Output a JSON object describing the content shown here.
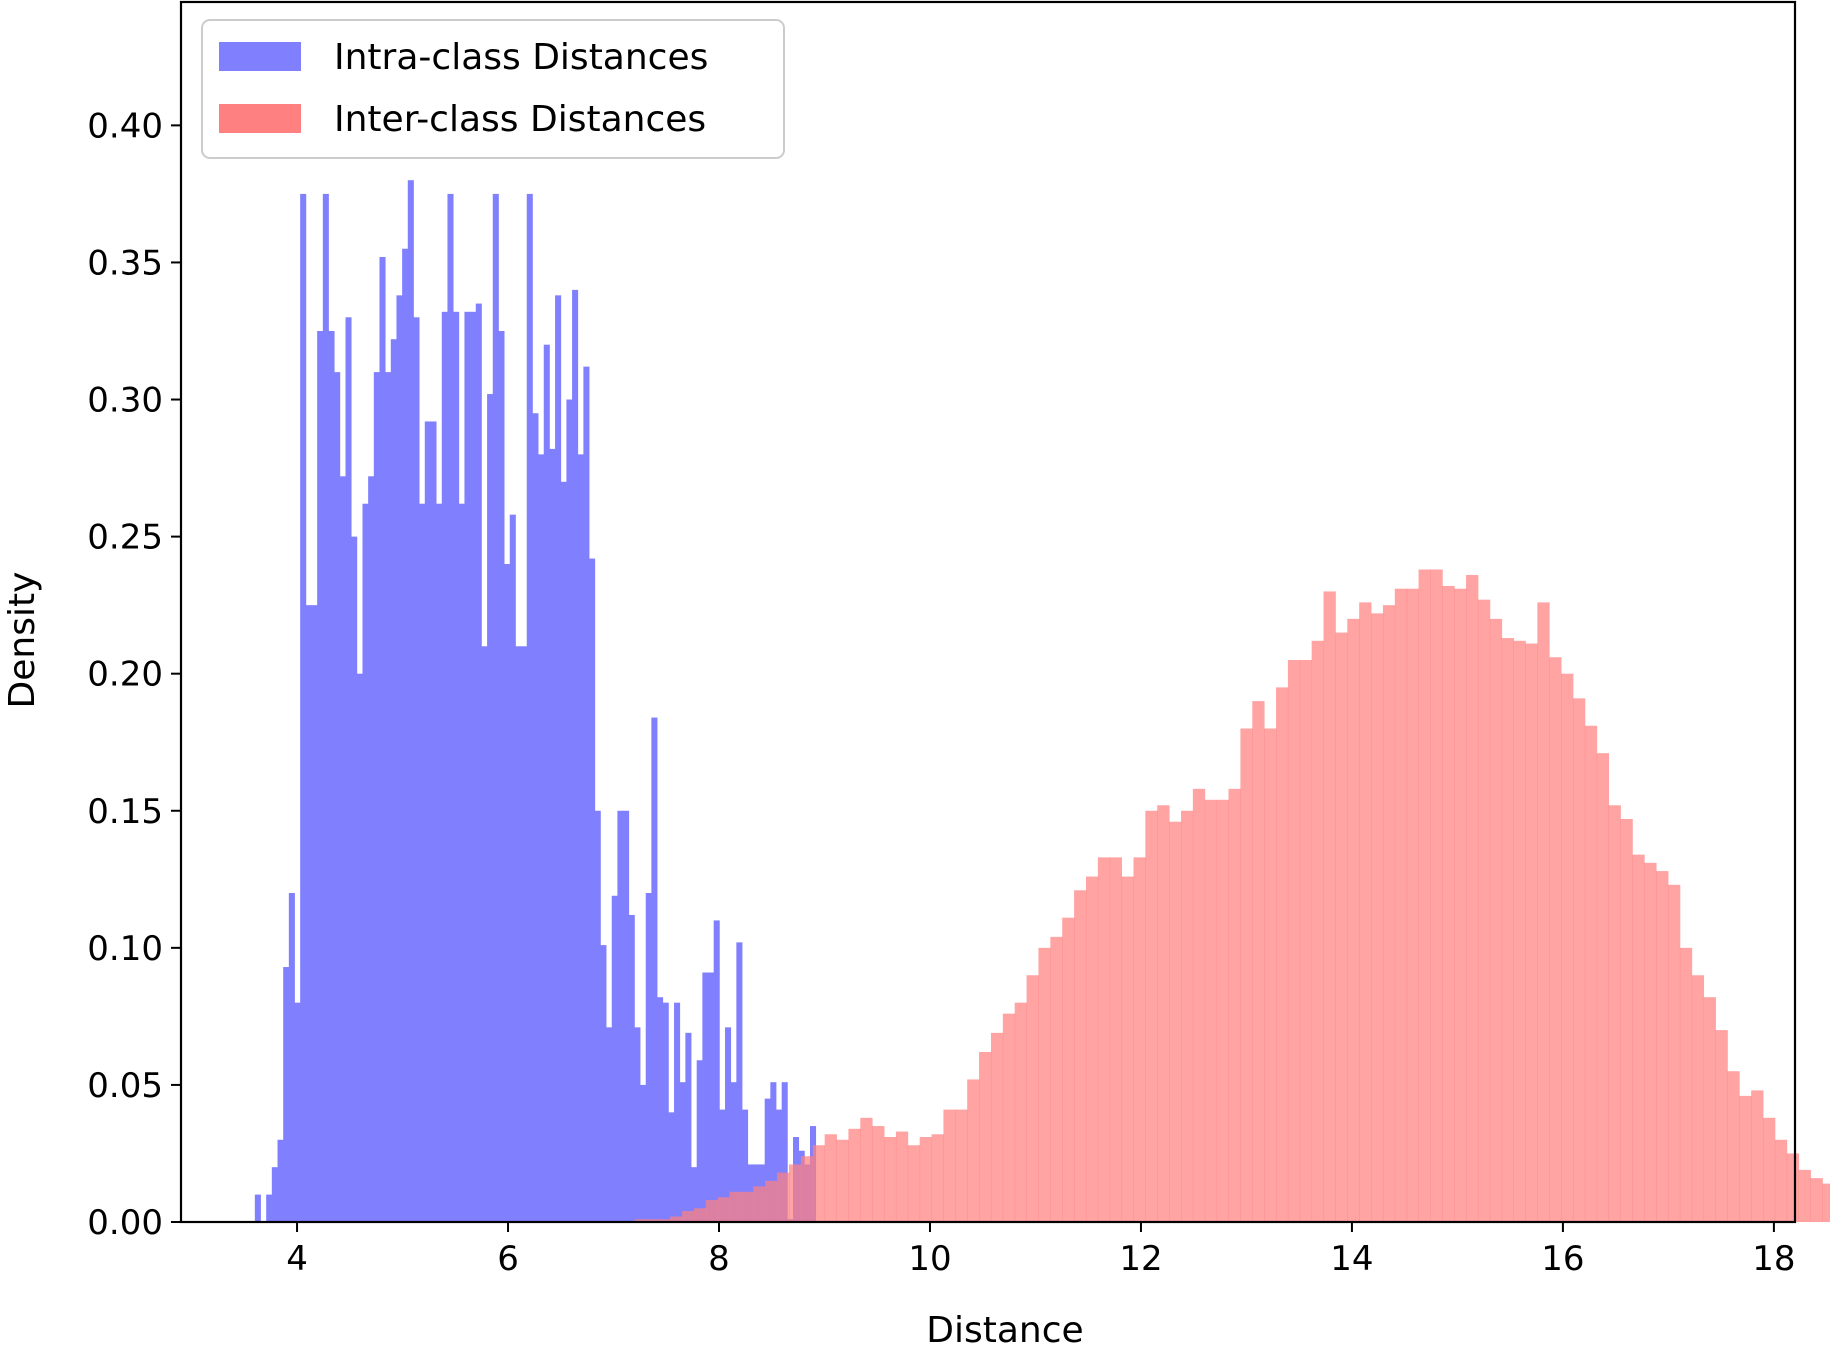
{
  "chart_data": {
    "type": "bar",
    "xlabel": "Distance",
    "ylabel": "Density",
    "xlim": [
      2.9,
      18.2
    ],
    "ylim": [
      0,
      0.445
    ],
    "xticks": [
      4,
      6,
      8,
      10,
      12,
      14,
      16,
      18
    ],
    "yticks": [
      0.0,
      0.05,
      0.1,
      0.15,
      0.2,
      0.25,
      0.3,
      0.35,
      0.4
    ],
    "xtick_labels": [
      "4",
      "6",
      "8",
      "10",
      "12",
      "14",
      "16",
      "18"
    ],
    "ytick_labels": [
      "0.00",
      "0.05",
      "0.10",
      "0.15",
      "0.20",
      "0.25",
      "0.30",
      "0.35",
      "0.40"
    ],
    "legend_position": "upper left",
    "series": [
      {
        "name": "Intra-class Distances",
        "color": "#8080ff",
        "x_start": 3.6,
        "bin_width": 0.0537,
        "values": [
          0.01,
          0.0,
          0.01,
          0.02,
          0.03,
          0.093,
          0.12,
          0.08,
          0.375,
          0.225,
          0.225,
          0.325,
          0.375,
          0.325,
          0.31,
          0.272,
          0.33,
          0.25,
          0.2,
          0.262,
          0.272,
          0.31,
          0.352,
          0.31,
          0.322,
          0.338,
          0.355,
          0.38,
          0.33,
          0.262,
          0.292,
          0.292,
          0.262,
          0.332,
          0.375,
          0.332,
          0.262,
          0.332,
          0.332,
          0.335,
          0.21,
          0.302,
          0.375,
          0.325,
          0.24,
          0.258,
          0.21,
          0.21,
          0.375,
          0.295,
          0.28,
          0.32,
          0.282,
          0.338,
          0.27,
          0.3,
          0.34,
          0.28,
          0.312,
          0.242,
          0.15,
          0.101,
          0.071,
          0.119,
          0.15,
          0.15,
          0.112,
          0.071,
          0.05,
          0.12,
          0.184,
          0.082,
          0.08,
          0.04,
          0.08,
          0.051,
          0.069,
          0.02,
          0.059,
          0.091,
          0.091,
          0.11,
          0.041,
          0.071,
          0.051,
          0.102,
          0.041,
          0.021,
          0.021,
          0.021,
          0.045,
          0.051,
          0.041,
          0.051,
          0.001,
          0.031,
          0.026,
          0.021,
          0.035
        ]
      },
      {
        "name": "Inter-class Distances",
        "color": "#ff8080",
        "x_start": 7.2,
        "bin_width": 0.1126,
        "values": [
          0.001,
          0.001,
          0.001,
          0.002,
          0.004,
          0.005,
          0.008,
          0.009,
          0.011,
          0.011,
          0.013,
          0.015,
          0.018,
          0.021,
          0.024,
          0.028,
          0.032,
          0.03,
          0.034,
          0.038,
          0.035,
          0.031,
          0.033,
          0.028,
          0.031,
          0.032,
          0.041,
          0.041,
          0.052,
          0.062,
          0.069,
          0.076,
          0.08,
          0.09,
          0.1,
          0.104,
          0.111,
          0.121,
          0.126,
          0.133,
          0.133,
          0.126,
          0.133,
          0.15,
          0.152,
          0.146,
          0.15,
          0.158,
          0.154,
          0.154,
          0.158,
          0.18,
          0.19,
          0.18,
          0.195,
          0.205,
          0.205,
          0.212,
          0.23,
          0.215,
          0.22,
          0.226,
          0.222,
          0.225,
          0.231,
          0.231,
          0.238,
          0.238,
          0.232,
          0.231,
          0.236,
          0.227,
          0.22,
          0.213,
          0.212,
          0.211,
          0.226,
          0.206,
          0.2,
          0.191,
          0.181,
          0.171,
          0.152,
          0.147,
          0.134,
          0.131,
          0.128,
          0.123,
          0.1,
          0.09,
          0.082,
          0.07,
          0.055,
          0.046,
          0.048,
          0.038,
          0.03,
          0.025,
          0.019,
          0.016,
          0.014,
          0.012,
          0.011,
          0.01,
          0.009,
          0.008,
          0.008,
          0.007,
          0.007,
          0.007,
          0.006,
          0.006,
          0.005,
          0.004,
          0.004,
          0.003,
          0.002,
          0.001,
          0.001,
          0.0,
          0.0,
          0.0,
          0.001
        ]
      }
    ]
  }
}
